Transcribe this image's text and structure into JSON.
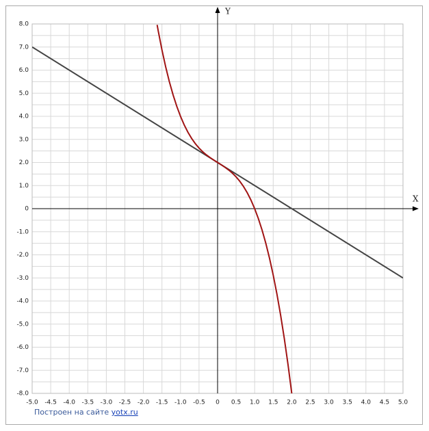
{
  "chart_data": {
    "type": "line",
    "x_axis_label": "X",
    "y_axis_label": "Y",
    "xlim": [
      -5,
      5
    ],
    "ylim": [
      -8,
      8
    ],
    "xticks": [
      {
        "value": -5,
        "label": "-5.0"
      },
      -4.5,
      {
        "value": -4,
        "label": "-4.0"
      },
      -3.5,
      {
        "value": -3,
        "label": "-3.0"
      },
      -2.5,
      {
        "value": -2,
        "label": "-2.0"
      },
      -1.5,
      {
        "value": -1,
        "label": "-1.0"
      },
      -0.5,
      0,
      0.5,
      {
        "value": 1,
        "label": "1.0"
      },
      1.5,
      {
        "value": 2,
        "label": "2.0"
      },
      2.5,
      {
        "value": 3,
        "label": "3.0"
      },
      3.5,
      {
        "value": 4,
        "label": "4.0"
      },
      4.5,
      {
        "value": 5,
        "label": "5.0"
      }
    ],
    "yticks": [
      {
        "value": -8,
        "label": "-8.0"
      },
      {
        "value": -7,
        "label": "-7.0"
      },
      {
        "value": -6,
        "label": "-6.0"
      },
      {
        "value": -5,
        "label": "-5.0"
      },
      {
        "value": -4,
        "label": "-4.0"
      },
      {
        "value": -3,
        "label": "-3.0"
      },
      {
        "value": -2,
        "label": "-2.0"
      },
      {
        "value": -1,
        "label": "-1.0"
      },
      0,
      {
        "value": 1,
        "label": "1.0"
      },
      {
        "value": 2,
        "label": "2.0"
      },
      {
        "value": 3,
        "label": "3.0"
      },
      {
        "value": 4,
        "label": "4.0"
      },
      {
        "value": 5,
        "label": "5.0"
      },
      {
        "value": 6,
        "label": "6.0"
      },
      {
        "value": 7,
        "label": "7.0"
      },
      {
        "value": 8,
        "label": "8.0"
      }
    ],
    "y_minor_grid": [
      -7.5,
      -6.5,
      -5.5,
      -4.5,
      -3.5,
      -2.5,
      -1.5,
      -0.5,
      0.5,
      1.5,
      2.5,
      3.5,
      4.5,
      5.5,
      6.5,
      7.5
    ],
    "grid": true,
    "series": [
      {
        "color": "#444444",
        "x": [
          -5,
          5
        ],
        "values": [
          7,
          -3
        ]
      },
      {
        "color": "#a01414",
        "x": [
          -1.63,
          -1.6,
          -1.5,
          -1.4,
          -1.3,
          -1.2,
          -1.1,
          -1.0,
          -0.9,
          -0.8,
          -0.7,
          -0.6,
          -0.5,
          -0.4,
          -0.3,
          -0.2,
          -0.1,
          0,
          0.1,
          0.2,
          0.3,
          0.4,
          0.5,
          0.6,
          0.7,
          0.8,
          0.9,
          1.0,
          1.1,
          1.2,
          1.3,
          1.4,
          1.5,
          1.6,
          1.7,
          1.8,
          1.9,
          2.0
        ],
        "values": [
          7.960747,
          7.696,
          6.875,
          6.144,
          5.497,
          4.928,
          4.431,
          4,
          3.629,
          3.312,
          3.043,
          2.816,
          2.625,
          2.464,
          2.327,
          2.208,
          2.101,
          2,
          1.899,
          1.792,
          1.673,
          1.536,
          1.375,
          1.184,
          0.957,
          0.688,
          0.371,
          0,
          -0.431,
          -0.928,
          -1.497,
          -2.144,
          -2.875,
          -3.696,
          -4.613,
          -5.632,
          -6.759,
          -8
        ]
      }
    ]
  },
  "footer": {
    "prefix": "Построен на сайте",
    "link": "yotx.ru"
  }
}
